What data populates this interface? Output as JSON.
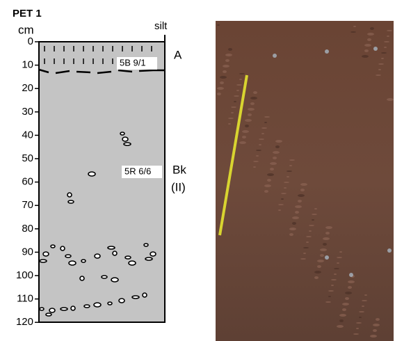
{
  "title": "PET 1",
  "depth_unit": "cm",
  "texture": "silt",
  "depth_ticks": [
    0,
    10,
    20,
    30,
    40,
    50,
    60,
    70,
    80,
    90,
    100,
    110,
    120
  ],
  "horizons": [
    {
      "name": "A",
      "color": "5B 9/1"
    },
    {
      "name": "Bk",
      "suffix": "(II)",
      "color": "5R 6/6"
    }
  ]
}
